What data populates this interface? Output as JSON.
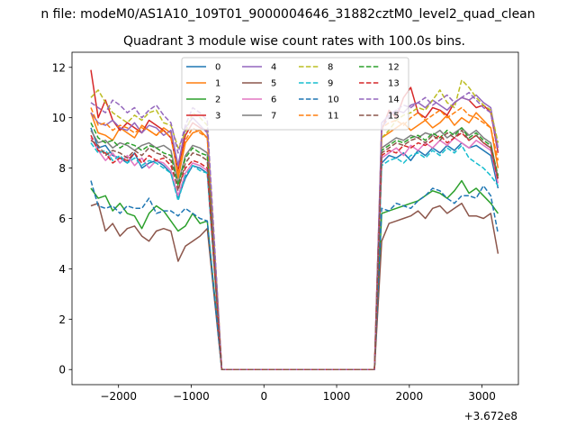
{
  "chart_data": {
    "type": "line",
    "suptitle": "n file: modeM0/AS1A10_109T01_9000004646_31882cztM0_level2_quad_clean",
    "title": "Quadrant 3 module wise count rates with 100.0s bins.",
    "xlabel": "",
    "ylabel": "",
    "x_offset_label": "+3.672e8",
    "xlim": [
      -2640,
      3500
    ],
    "ylim": [
      -0.6,
      12.6
    ],
    "x_ticks": [
      -2000,
      -1000,
      0,
      1000,
      2000,
      3000
    ],
    "x_tick_labels": [
      "−2000",
      "−1000",
      "0",
      "1000",
      "2000",
      "3000"
    ],
    "y_ticks": [
      0,
      2,
      4,
      6,
      8,
      10,
      12
    ],
    "y_tick_labels": [
      "0",
      "2",
      "4",
      "6",
      "8",
      "10",
      "12"
    ],
    "grid": false,
    "legend_position": "upper-center",
    "x": [
      -2380,
      -2280,
      -2180,
      -2080,
      -1980,
      -1880,
      -1780,
      -1680,
      -1580,
      -1480,
      -1380,
      -1280,
      -1180,
      -1080,
      -980,
      -880,
      -780,
      -680,
      -580,
      -480,
      -380,
      -280,
      -180,
      -80,
      20,
      120,
      220,
      320,
      420,
      520,
      620,
      720,
      820,
      920,
      1020,
      1120,
      1220,
      1320,
      1420,
      1520,
      1620,
      1720,
      1820,
      1920,
      2020,
      2120,
      2220,
      2320,
      2420,
      2520,
      2620,
      2720,
      2820,
      2920,
      3020,
      3120,
      3220
    ],
    "series": [
      {
        "name": "0",
        "color": "#1f77b4",
        "dash": false,
        "values": [
          9.6,
          8.8,
          8.9,
          8.5,
          8.4,
          8.2,
          8.6,
          8.0,
          8.2,
          8.3,
          8.1,
          7.8,
          6.8,
          7.6,
          8.1,
          8.0,
          7.8,
          4.0,
          0.0,
          0.0,
          0.0,
          0.0,
          0.0,
          0.0,
          0.0,
          0.0,
          0.0,
          0.0,
          0.0,
          0.0,
          0.0,
          0.0,
          0.0,
          0.0,
          0.0,
          0.0,
          0.0,
          0.0,
          0.0,
          0.0,
          8.2,
          8.5,
          8.4,
          8.6,
          8.3,
          8.7,
          8.5,
          8.8,
          8.6,
          8.9,
          8.7,
          9.0,
          8.8,
          8.9,
          8.7,
          8.5,
          7.2
        ]
      },
      {
        "name": "1",
        "color": "#ff7f0e",
        "dash": false,
        "values": [
          10.2,
          9.4,
          9.3,
          9.1,
          9.6,
          9.4,
          9.2,
          9.7,
          9.5,
          9.3,
          9.6,
          9.4,
          7.6,
          9.0,
          9.4,
          9.5,
          9.2,
          4.6,
          0.0,
          0.0,
          0.0,
          0.0,
          0.0,
          0.0,
          0.0,
          0.0,
          0.0,
          0.0,
          0.0,
          0.0,
          0.0,
          0.0,
          0.0,
          0.0,
          0.0,
          0.0,
          0.0,
          0.0,
          0.0,
          0.0,
          9.2,
          9.4,
          9.6,
          9.8,
          9.5,
          9.7,
          9.9,
          9.6,
          9.8,
          10.1,
          9.7,
          10.0,
          9.8,
          10.2,
          9.9,
          9.6,
          8.0
        ]
      },
      {
        "name": "2",
        "color": "#2ca02c",
        "dash": false,
        "values": [
          7.2,
          6.8,
          6.9,
          6.3,
          6.6,
          6.2,
          6.1,
          5.6,
          6.2,
          6.5,
          6.3,
          5.9,
          5.5,
          5.7,
          6.2,
          5.8,
          5.9,
          3.0,
          0.0,
          0.0,
          0.0,
          0.0,
          0.0,
          0.0,
          0.0,
          0.0,
          0.0,
          0.0,
          0.0,
          0.0,
          0.0,
          0.0,
          0.0,
          0.0,
          0.0,
          0.0,
          0.0,
          0.0,
          0.0,
          0.0,
          6.2,
          6.3,
          6.4,
          6.5,
          6.6,
          6.7,
          6.9,
          7.1,
          7.0,
          6.8,
          7.1,
          7.5,
          7.0,
          7.2,
          6.9,
          6.6,
          6.2
        ]
      },
      {
        "name": "3",
        "color": "#d62728",
        "dash": false,
        "values": [
          11.9,
          10.0,
          10.7,
          9.9,
          9.5,
          9.8,
          9.6,
          9.4,
          9.9,
          9.7,
          9.5,
          9.2,
          7.9,
          9.3,
          9.8,
          9.6,
          9.5,
          4.8,
          0.0,
          0.0,
          0.0,
          0.0,
          0.0,
          0.0,
          0.0,
          0.0,
          0.0,
          0.0,
          0.0,
          0.0,
          0.0,
          0.0,
          0.0,
          0.0,
          0.0,
          0.0,
          0.0,
          0.0,
          0.0,
          0.0,
          9.5,
          10.3,
          10.0,
          10.8,
          11.2,
          10.2,
          10.0,
          10.4,
          10.3,
          10.1,
          10.6,
          10.8,
          10.7,
          10.4,
          10.5,
          10.2,
          8.6
        ]
      },
      {
        "name": "4",
        "color": "#9467bd",
        "dash": false,
        "values": [
          10.2,
          9.8,
          9.7,
          9.9,
          9.6,
          9.5,
          9.8,
          9.4,
          9.7,
          9.6,
          9.3,
          9.5,
          8.1,
          9.6,
          10.0,
          9.7,
          9.4,
          4.7,
          0.0,
          0.0,
          0.0,
          0.0,
          0.0,
          0.0,
          0.0,
          0.0,
          0.0,
          0.0,
          0.0,
          0.0,
          0.0,
          0.0,
          0.0,
          0.0,
          0.0,
          0.0,
          0.0,
          0.0,
          0.0,
          0.0,
          9.8,
          10.1,
          10.3,
          10.2,
          10.5,
          10.6,
          10.4,
          10.7,
          10.5,
          10.3,
          10.6,
          10.8,
          10.7,
          10.9,
          10.6,
          10.4,
          8.8
        ]
      },
      {
        "name": "5",
        "color": "#8c564b",
        "dash": false,
        "values": [
          6.5,
          6.6,
          5.5,
          5.8,
          5.3,
          5.6,
          5.7,
          5.3,
          5.1,
          5.5,
          5.6,
          5.5,
          4.3,
          4.9,
          5.1,
          5.3,
          5.6,
          2.8,
          0.0,
          0.0,
          0.0,
          0.0,
          0.0,
          0.0,
          0.0,
          0.0,
          0.0,
          0.0,
          0.0,
          0.0,
          0.0,
          0.0,
          0.0,
          0.0,
          0.0,
          0.0,
          0.0,
          0.0,
          0.0,
          0.0,
          5.1,
          5.8,
          5.9,
          6.0,
          6.1,
          6.3,
          6.0,
          6.4,
          6.5,
          6.2,
          6.4,
          6.6,
          6.1,
          6.1,
          6.0,
          6.2,
          4.6
        ]
      },
      {
        "name": "6",
        "color": "#e377c2",
        "dash": false,
        "values": [
          9.2,
          8.7,
          8.3,
          8.6,
          8.2,
          8.5,
          8.1,
          8.4,
          8.0,
          8.3,
          8.2,
          7.9,
          6.9,
          7.8,
          8.2,
          8.1,
          7.9,
          4.0,
          0.0,
          0.0,
          0.0,
          0.0,
          0.0,
          0.0,
          0.0,
          0.0,
          0.0,
          0.0,
          0.0,
          0.0,
          0.0,
          0.0,
          0.0,
          0.0,
          0.0,
          0.0,
          0.0,
          0.0,
          0.0,
          0.0,
          8.4,
          8.6,
          8.8,
          8.5,
          8.9,
          8.7,
          9.0,
          8.8,
          9.1,
          8.9,
          9.2,
          9.0,
          8.8,
          9.1,
          8.9,
          8.7,
          7.4
        ]
      },
      {
        "name": "7",
        "color": "#7f7f7f",
        "dash": false,
        "values": [
          9.5,
          9.0,
          9.1,
          8.8,
          9.0,
          8.9,
          8.7,
          8.9,
          9.0,
          8.8,
          8.9,
          8.7,
          7.4,
          8.5,
          8.9,
          8.8,
          8.6,
          4.3,
          0.0,
          0.0,
          0.0,
          0.0,
          0.0,
          0.0,
          0.0,
          0.0,
          0.0,
          0.0,
          0.0,
          0.0,
          0.0,
          0.0,
          0.0,
          0.0,
          0.0,
          0.0,
          0.0,
          0.0,
          0.0,
          0.0,
          8.8,
          9.0,
          9.2,
          9.1,
          9.3,
          9.2,
          9.4,
          9.3,
          9.5,
          9.2,
          9.4,
          9.6,
          9.3,
          9.5,
          9.2,
          9.0,
          7.6
        ]
      },
      {
        "name": "8",
        "color": "#bcbd22",
        "dash": true,
        "values": [
          10.8,
          11.1,
          10.6,
          10.2,
          10.0,
          9.8,
          10.1,
          9.9,
          10.2,
          10.3,
          9.8,
          9.7,
          8.8,
          9.4,
          10.2,
          10.0,
          9.7,
          5.0,
          0.0,
          0.0,
          0.0,
          0.0,
          0.0,
          0.0,
          0.0,
          0.0,
          0.0,
          0.0,
          0.0,
          0.0,
          0.0,
          0.0,
          0.0,
          0.0,
          0.0,
          0.0,
          0.0,
          0.0,
          0.0,
          0.0,
          9.2,
          9.5,
          9.9,
          10.1,
          10.2,
          10.4,
          10.3,
          10.7,
          11.1,
          10.6,
          10.4,
          11.5,
          11.2,
          10.8,
          10.5,
          10.3,
          9.0
        ]
      },
      {
        "name": "9",
        "color": "#17becf",
        "dash": true,
        "values": [
          9.0,
          8.6,
          8.7,
          8.3,
          8.5,
          8.2,
          8.4,
          8.1,
          8.3,
          8.2,
          8.0,
          7.8,
          6.7,
          7.7,
          8.1,
          7.9,
          7.8,
          3.9,
          0.0,
          0.0,
          0.0,
          0.0,
          0.0,
          0.0,
          0.0,
          0.0,
          0.0,
          0.0,
          0.0,
          0.0,
          0.0,
          0.0,
          0.0,
          0.0,
          0.0,
          0.0,
          0.0,
          0.0,
          0.0,
          0.0,
          8.1,
          8.3,
          8.4,
          8.2,
          8.5,
          8.6,
          8.4,
          8.7,
          8.5,
          8.8,
          8.6,
          8.9,
          8.4,
          8.2,
          8.0,
          7.7,
          7.3
        ]
      },
      {
        "name": "10",
        "color": "#1f77b4",
        "dash": true,
        "values": [
          7.5,
          6.5,
          6.4,
          6.5,
          6.2,
          6.5,
          6.4,
          6.4,
          6.8,
          6.2,
          6.3,
          6.3,
          6.1,
          6.4,
          6.2,
          6.0,
          5.9,
          2.9,
          0.0,
          0.0,
          0.0,
          0.0,
          0.0,
          0.0,
          0.0,
          0.0,
          0.0,
          0.0,
          0.0,
          0.0,
          0.0,
          0.0,
          0.0,
          0.0,
          0.0,
          0.0,
          0.0,
          0.0,
          0.0,
          0.0,
          6.4,
          6.3,
          6.6,
          6.5,
          6.4,
          6.7,
          6.9,
          7.2,
          7.1,
          6.8,
          6.6,
          6.9,
          6.9,
          6.8,
          7.3,
          6.9,
          5.4
        ]
      },
      {
        "name": "11",
        "color": "#ff7f0e",
        "dash": true,
        "values": [
          10.4,
          9.7,
          9.8,
          9.5,
          9.7,
          9.6,
          9.4,
          9.6,
          9.5,
          9.3,
          9.5,
          9.2,
          7.8,
          9.1,
          9.6,
          9.4,
          9.2,
          4.6,
          0.0,
          0.0,
          0.0,
          0.0,
          0.0,
          0.0,
          0.0,
          0.0,
          0.0,
          0.0,
          0.0,
          0.0,
          0.0,
          0.0,
          0.0,
          0.0,
          0.0,
          0.0,
          0.0,
          0.0,
          0.0,
          0.0,
          9.6,
          9.8,
          9.9,
          9.7,
          10.0,
          10.2,
          9.9,
          10.1,
          10.3,
          10.0,
          10.2,
          10.4,
          10.1,
          10.0,
          9.8,
          9.6,
          8.3
        ]
      },
      {
        "name": "12",
        "color": "#2ca02c",
        "dash": true,
        "values": [
          9.8,
          9.2,
          9.0,
          9.1,
          8.8,
          9.0,
          8.9,
          8.7,
          8.9,
          8.8,
          8.6,
          8.5,
          7.3,
          8.4,
          8.8,
          8.6,
          8.5,
          4.2,
          0.0,
          0.0,
          0.0,
          0.0,
          0.0,
          0.0,
          0.0,
          0.0,
          0.0,
          0.0,
          0.0,
          0.0,
          0.0,
          0.0,
          0.0,
          0.0,
          0.0,
          0.0,
          0.0,
          0.0,
          0.0,
          0.0,
          8.7,
          8.9,
          9.1,
          9.0,
          9.2,
          9.3,
          9.1,
          9.4,
          9.2,
          9.5,
          9.3,
          9.6,
          9.2,
          9.4,
          9.1,
          8.9,
          7.7
        ]
      },
      {
        "name": "13",
        "color": "#d62728",
        "dash": true,
        "values": [
          9.3,
          8.7,
          8.6,
          8.2,
          8.4,
          8.3,
          8.6,
          8.2,
          8.5,
          8.3,
          8.4,
          8.1,
          7.2,
          8.0,
          8.3,
          8.2,
          8.0,
          4.0,
          0.0,
          0.0,
          0.0,
          0.0,
          0.0,
          0.0,
          0.0,
          0.0,
          0.0,
          0.0,
          0.0,
          0.0,
          0.0,
          0.0,
          0.0,
          0.0,
          0.0,
          0.0,
          0.0,
          0.0,
          0.0,
          0.0,
          8.5,
          8.7,
          8.6,
          8.9,
          8.8,
          9.0,
          8.9,
          9.1,
          9.3,
          9.0,
          9.2,
          9.4,
          9.1,
          9.3,
          9.0,
          8.8,
          7.5
        ]
      },
      {
        "name": "14",
        "color": "#9467bd",
        "dash": true,
        "values": [
          10.6,
          10.4,
          10.2,
          10.7,
          10.5,
          10.2,
          10.4,
          10.0,
          10.3,
          10.5,
          10.1,
          9.8,
          8.6,
          9.7,
          10.4,
          10.2,
          9.9,
          5.0,
          0.0,
          0.0,
          0.0,
          0.0,
          0.0,
          0.0,
          0.0,
          0.0,
          0.0,
          0.0,
          0.0,
          0.0,
          0.0,
          0.0,
          0.0,
          0.0,
          0.0,
          0.0,
          0.0,
          0.0,
          0.0,
          0.0,
          9.6,
          10.0,
          10.3,
          10.5,
          10.4,
          10.6,
          10.8,
          10.5,
          10.7,
          10.9,
          10.6,
          10.8,
          11.0,
          10.7,
          10.4,
          10.2,
          8.7
        ]
      },
      {
        "name": "15",
        "color": "#8c564b",
        "dash": true,
        "values": [
          9.1,
          8.9,
          8.5,
          8.7,
          8.6,
          8.4,
          8.7,
          8.5,
          8.8,
          8.6,
          8.5,
          8.3,
          7.1,
          8.2,
          8.6,
          8.5,
          8.3,
          4.1,
          0.0,
          0.0,
          0.0,
          0.0,
          0.0,
          0.0,
          0.0,
          0.0,
          0.0,
          0.0,
          0.0,
          0.0,
          0.0,
          0.0,
          0.0,
          0.0,
          0.0,
          0.0,
          0.0,
          0.0,
          0.0,
          0.0,
          8.6,
          8.8,
          9.0,
          8.9,
          9.1,
          9.2,
          9.0,
          9.3,
          9.1,
          9.4,
          9.2,
          9.5,
          9.1,
          9.3,
          9.0,
          8.8,
          7.6
        ]
      }
    ]
  }
}
